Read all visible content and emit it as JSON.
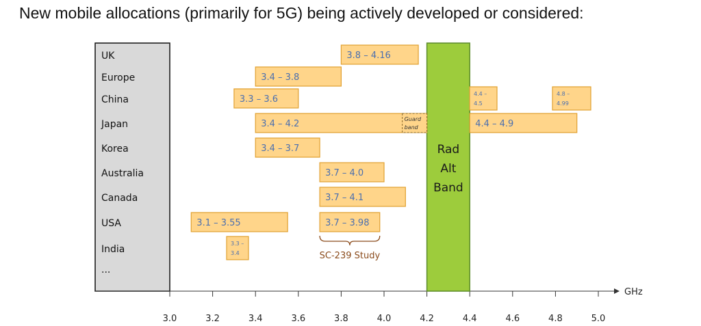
{
  "title": "New mobile allocations (primarily for 5G) being actively developed or considered:",
  "chart_data": {
    "type": "bar",
    "orientation": "horizontal-range",
    "title": "New mobile allocations (primarily for 5G) being actively developed or considered:",
    "xlabel": "GHz",
    "xlim": [
      3.0,
      5.0
    ],
    "x_ticks": [
      "3.0",
      "3.2",
      "3.4",
      "3.6",
      "3.8",
      "4.0",
      "4.2",
      "4.4",
      "4.6",
      "4.8",
      "5.0"
    ],
    "categories": [
      "UK",
      "Europe",
      "China",
      "Japan",
      "Korea",
      "Australia",
      "Canada",
      "USA",
      "India",
      "..."
    ],
    "ranges": [
      {
        "country": "UK",
        "start": 3.8,
        "end": 4.16,
        "label": "3.8 – 4.16",
        "small": false
      },
      {
        "country": "Europe",
        "start": 3.4,
        "end": 3.8,
        "label": "3.4 – 3.8",
        "small": false
      },
      {
        "country": "China",
        "start": 3.3,
        "end": 3.6,
        "label": "3.3 – 3.6",
        "small": false
      },
      {
        "country": "China",
        "start": 4.4,
        "end": 4.5,
        "label": "4.4 – 4.5",
        "small": true
      },
      {
        "country": "China",
        "start": 4.8,
        "end": 4.99,
        "label": "4.8 – 4.99",
        "small": true
      },
      {
        "country": "Japan",
        "start": 3.4,
        "end": 4.2,
        "label": "3.4 – 4.2",
        "small": false
      },
      {
        "country": "Japan",
        "start": 4.4,
        "end": 4.9,
        "label": "4.4 – 4.9",
        "small": false
      },
      {
        "country": "Korea",
        "start": 3.4,
        "end": 3.7,
        "label": "3.4 – 3.7",
        "small": false
      },
      {
        "country": "Australia",
        "start": 3.7,
        "end": 4.0,
        "label": "3.7 – 4.0",
        "small": false
      },
      {
        "country": "Canada",
        "start": 3.7,
        "end": 4.1,
        "label": "3.7 – 4.1",
        "small": false
      },
      {
        "country": "USA",
        "start": 3.1,
        "end": 3.55,
        "label": "3.1 – 3.55",
        "small": false
      },
      {
        "country": "USA",
        "start": 3.7,
        "end": 3.98,
        "label": "3.7 – 3.98",
        "small": false
      },
      {
        "country": "India",
        "start": 3.3,
        "end": 3.4,
        "label": "3.3 – 3.4",
        "small": true
      }
    ],
    "guard_band": {
      "country": "Japan",
      "start": 4.2,
      "end": 4.2,
      "label": "Guard band"
    },
    "rad_alt_band": {
      "start": 4.2,
      "end": 4.4,
      "label": [
        "Rad",
        "Alt",
        "Band"
      ],
      "color": "#9dcc3c"
    },
    "annotation": {
      "text": "SC-239 Study",
      "start": 3.7,
      "end": 3.98,
      "country": "USA"
    },
    "colors": {
      "bar_fill": "#ffd58a",
      "bar_stroke": "#e0a030",
      "label": "#4a6fb0",
      "panel": "#d9d9d9",
      "rad_alt": "#9dcc3c",
      "annotation": "#8a4a1a"
    }
  }
}
